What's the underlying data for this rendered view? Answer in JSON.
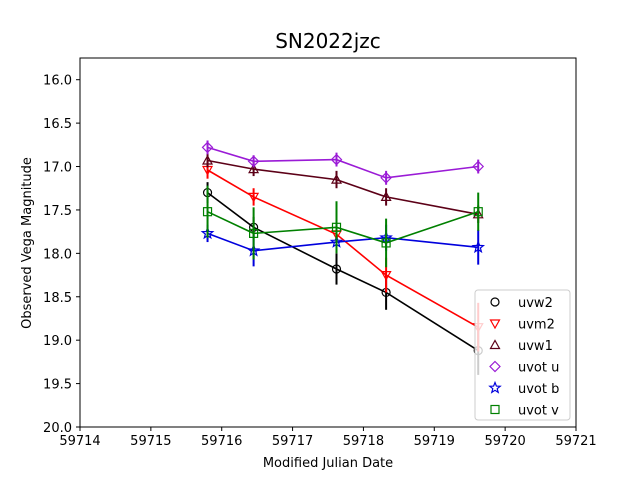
{
  "chart_data": {
    "type": "line",
    "title": "SN2022jzc",
    "xlabel": "Modified Julian Date",
    "ylabel": "Observed Vega Magnitude",
    "xlim": [
      59714,
      59721
    ],
    "ylim": [
      20.0,
      15.75
    ],
    "y_inverted": true,
    "x_ticks": [
      "59714",
      "59715",
      "59716",
      "59717",
      "59718",
      "59719",
      "59720",
      "59721"
    ],
    "y_ticks": [
      "16.0",
      "16.5",
      "17.0",
      "17.5",
      "18.0",
      "18.5",
      "19.0",
      "19.5",
      "20.0"
    ],
    "grid": false,
    "legend_position": "lower-right",
    "series": [
      {
        "name": "uvw2",
        "marker": "circle",
        "color": "#000000",
        "x": [
          59715.8,
          59716.45,
          59717.62,
          59718.32,
          59719.62
        ],
        "y": [
          17.3,
          17.7,
          18.18,
          18.45,
          19.12
        ],
        "yerr": [
          0.12,
          0.12,
          0.18,
          0.2,
          0.28
        ]
      },
      {
        "name": "uvm2",
        "marker": "triangle-down",
        "color": "#ff0000",
        "x": [
          59715.8,
          59716.45,
          59717.62,
          59718.32,
          59719.62
        ],
        "y": [
          17.04,
          17.35,
          17.78,
          18.25,
          18.85
        ],
        "yerr": [
          0.1,
          0.1,
          0.13,
          0.2,
          0.28
        ]
      },
      {
        "name": "uvw1",
        "marker": "triangle-up",
        "color": "#5c0017",
        "x": [
          59715.8,
          59716.45,
          59717.62,
          59718.32,
          59719.62
        ],
        "y": [
          16.93,
          17.03,
          17.15,
          17.35,
          17.55
        ],
        "yerr": [
          0.08,
          0.08,
          0.1,
          0.1,
          0.1
        ]
      },
      {
        "name": "uvot u",
        "marker": "diamond",
        "color": "#9a1bd6",
        "x": [
          59715.8,
          59716.45,
          59717.62,
          59718.32,
          59719.62
        ],
        "y": [
          16.78,
          16.94,
          16.92,
          17.13,
          17.0
        ],
        "yerr": [
          0.08,
          0.07,
          0.08,
          0.08,
          0.08
        ]
      },
      {
        "name": "uvot b",
        "marker": "star",
        "color": "#0000dd",
        "x": [
          59715.8,
          59716.45,
          59717.62,
          59718.32,
          59719.62
        ],
        "y": [
          17.77,
          17.97,
          17.87,
          17.82,
          17.93
        ],
        "yerr": [
          0.1,
          0.18,
          0.12,
          0.15,
          0.2
        ]
      },
      {
        "name": "uvot v",
        "marker": "square",
        "color": "#008000",
        "x": [
          59715.8,
          59716.45,
          59717.62,
          59718.32,
          59719.62
        ],
        "y": [
          17.52,
          17.77,
          17.7,
          17.88,
          17.52
        ],
        "yerr": [
          0.3,
          0.3,
          0.3,
          0.28,
          0.22
        ]
      }
    ]
  }
}
